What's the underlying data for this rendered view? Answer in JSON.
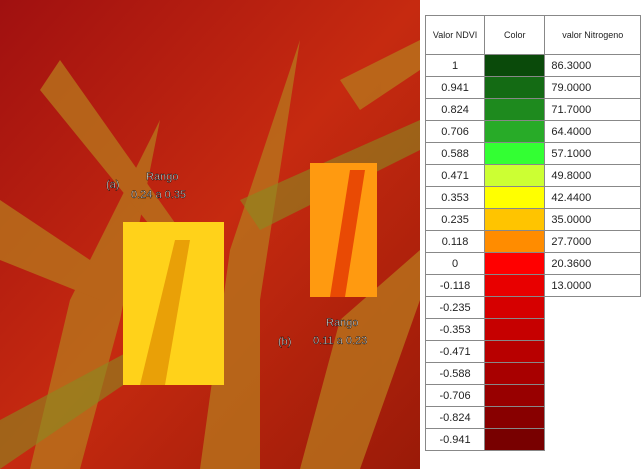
{
  "image": {
    "label_a": "(a)",
    "range_a_title": "Rango",
    "range_a": "0.24 a 0.35",
    "label_b": "(b)",
    "range_b_title": "Rango",
    "range_b": "0.11 a 0.23"
  },
  "table": {
    "headers": [
      "Valor NDVI",
      "Color",
      "valor Nitrogeno"
    ],
    "rows": [
      {
        "ndvi": "1",
        "color": "#0a4a0a",
        "nitrogen": "86.3000"
      },
      {
        "ndvi": "0.941",
        "color": "#146b14",
        "nitrogen": "79.0000"
      },
      {
        "ndvi": "0.824",
        "color": "#1e8a1e",
        "nitrogen": "71.7000"
      },
      {
        "ndvi": "0.706",
        "color": "#28ab28",
        "nitrogen": "64.4000"
      },
      {
        "ndvi": "0.588",
        "color": "#33ff33",
        "nitrogen": "57.1000"
      },
      {
        "ndvi": "0.471",
        "color": "#ccff33",
        "nitrogen": "49.8000"
      },
      {
        "ndvi": "0.353",
        "color": "#ffff00",
        "nitrogen": "42.4400"
      },
      {
        "ndvi": "0.235",
        "color": "#ffc400",
        "nitrogen": "35.0000"
      },
      {
        "ndvi": "0.118",
        "color": "#ff8c00",
        "nitrogen": "27.7000"
      },
      {
        "ndvi": "0",
        "color": "#ff0000",
        "nitrogen": "20.3600"
      },
      {
        "ndvi": "-0.118",
        "color": "#e80000",
        "nitrogen": "13.0000"
      },
      {
        "ndvi": "-0.235",
        "color": "#d60000"
      },
      {
        "ndvi": "-0.353",
        "color": "#c60000"
      },
      {
        "ndvi": "-0.471",
        "color": "#b80000"
      },
      {
        "ndvi": "-0.588",
        "color": "#a80000"
      },
      {
        "ndvi": "-0.706",
        "color": "#980000"
      },
      {
        "ndvi": "-0.824",
        "color": "#880000"
      },
      {
        "ndvi": "-0.941",
        "color": "#780000"
      }
    ]
  }
}
